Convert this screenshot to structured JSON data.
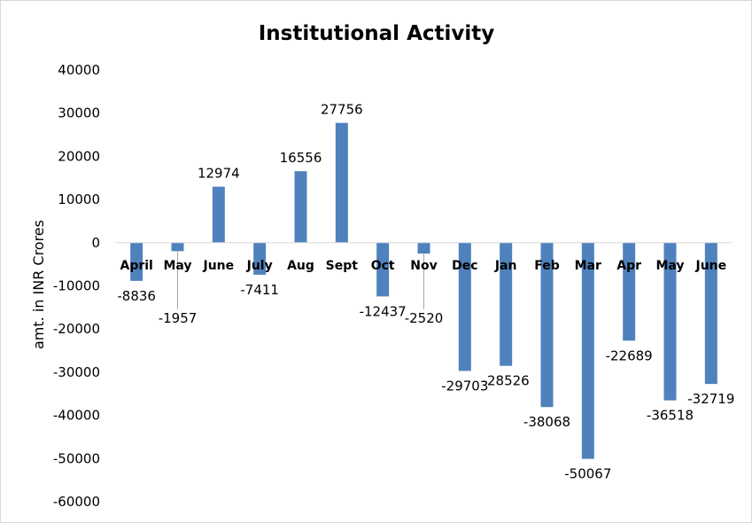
{
  "chart_data": {
    "type": "bar",
    "title": "Institutional Activity",
    "xlabel": "",
    "ylabel": "amt. in INR Crores",
    "ylim": [
      -60000,
      40000
    ],
    "yticks": [
      40000,
      30000,
      20000,
      10000,
      0,
      -10000,
      -20000,
      -30000,
      -40000,
      -50000,
      -60000
    ],
    "categories": [
      "April",
      "May",
      "June",
      "July",
      "Aug",
      "Sept",
      "Oct",
      "Nov",
      "Dec",
      "Jan",
      "Feb",
      "Mar",
      "Apr",
      "May",
      "June"
    ],
    "values": [
      -8836,
      -1957,
      12974,
      -7411,
      16556,
      27756,
      -12437,
      -2520,
      -29703,
      -28526,
      -38068,
      -50067,
      -22689,
      -36518,
      -32719
    ],
    "bar_color": "#4f81bd",
    "grid": false,
    "legend": "none"
  }
}
